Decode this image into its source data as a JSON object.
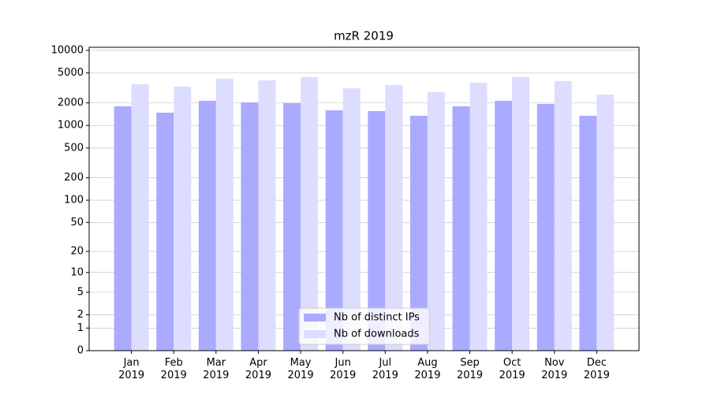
{
  "chart_data": {
    "type": "bar",
    "title": "mzR 2019",
    "categories": [
      "Jan 2019",
      "Feb 2019",
      "Mar 2019",
      "Apr 2019",
      "May 2019",
      "Jun 2019",
      "Jul 2019",
      "Aug 2019",
      "Sep 2019",
      "Oct 2019",
      "Nov 2019",
      "Dec 2019"
    ],
    "series": [
      {
        "name": "Nb of distinct IPs",
        "color": "#aaaaff",
        "values": [
          1800,
          1480,
          2130,
          2030,
          1980,
          1590,
          1555,
          1345,
          1800,
          2130,
          1930,
          1345
        ]
      },
      {
        "name": "Nb of downloads",
        "color": "#ddddff",
        "values": [
          3540,
          3290,
          4190,
          3990,
          4400,
          3130,
          3450,
          2780,
          3710,
          4400,
          3890,
          2580
        ]
      }
    ],
    "yscale": "log1p",
    "ylim": [
      0,
      11000
    ],
    "yticks": [
      0,
      1,
      2,
      5,
      10,
      20,
      50,
      100,
      200,
      500,
      1000,
      2000,
      5000,
      10000
    ],
    "grid": true,
    "legend": "lower center"
  }
}
